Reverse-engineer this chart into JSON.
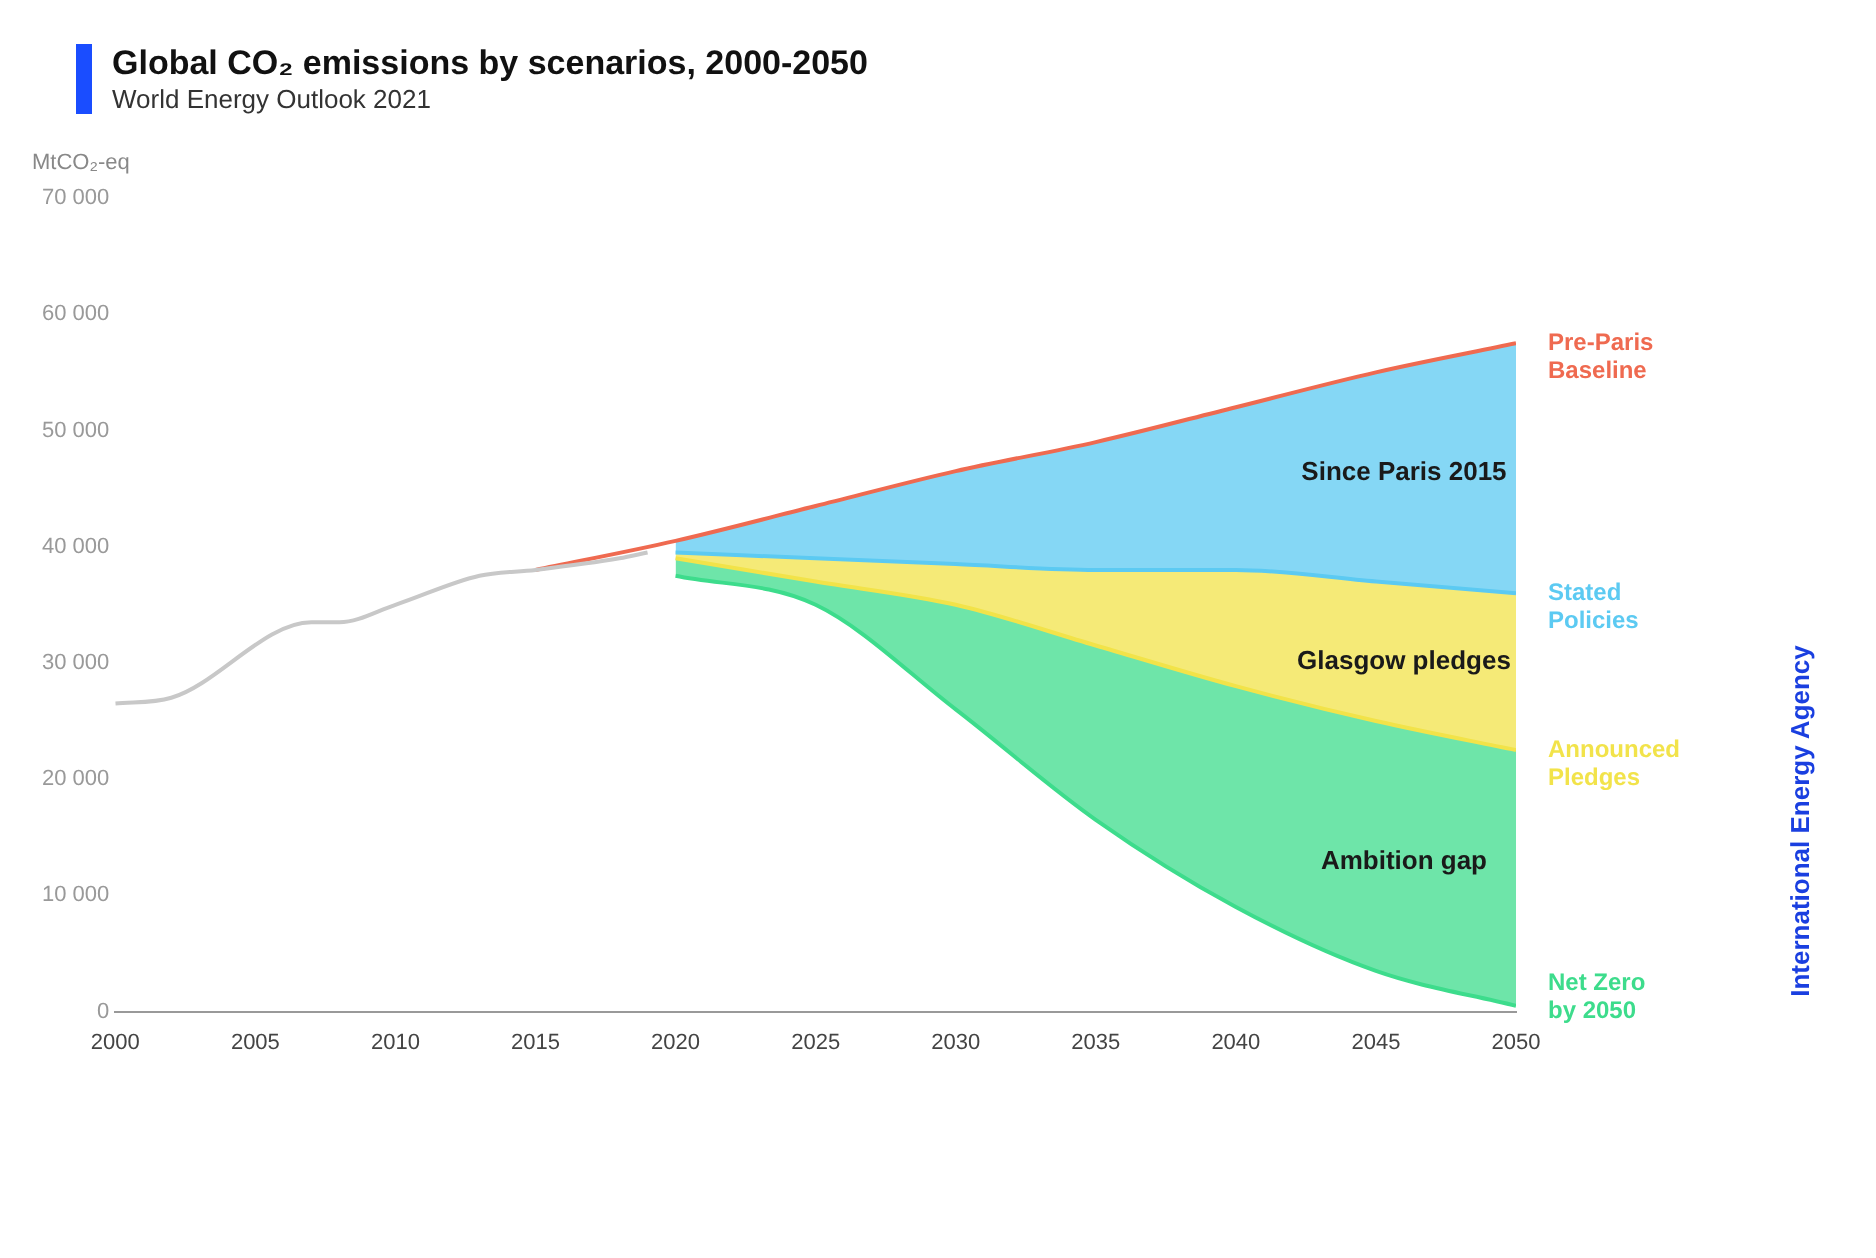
{
  "chart_data": {
    "type": "line",
    "title": "Global CO₂ emissions by scenarios, 2000-2050",
    "subtitle": "World Energy Outlook 2021",
    "ylabel": "MtCO₂-eq",
    "xlim": [
      2000,
      2050
    ],
    "xticks": [
      2000,
      2005,
      2010,
      2015,
      2020,
      2025,
      2030,
      2035,
      2040,
      2045,
      2050
    ],
    "ylim": [
      0,
      70000
    ],
    "yticks": [
      {
        "value": 0,
        "label": "0"
      },
      {
        "value": 10000,
        "label": "10 000"
      },
      {
        "value": 20000,
        "label": "20 000"
      },
      {
        "value": 30000,
        "label": "30 000"
      },
      {
        "value": 40000,
        "label": "40 000"
      },
      {
        "value": 50000,
        "label": "50 000"
      },
      {
        "value": 60000,
        "label": "60 000"
      },
      {
        "value": 70000,
        "label": "70 000"
      }
    ],
    "grid": false,
    "legend": false,
    "series": [
      {
        "color": "#c8c8c8",
        "x": [
          2000,
          2002,
          2007,
          2008,
          2010,
          2013,
          2015,
          2018,
          2019
        ],
        "values": [
          26500,
          27000,
          33500,
          33500,
          35000,
          37500,
          38000,
          39000,
          39500
        ]
      },
      {
        "name": "Pre-Paris Baseline",
        "color": "#ef6a50",
        "x": [
          2015,
          2020,
          2025,
          2030,
          2035,
          2040,
          2045,
          2050
        ],
        "values": [
          38000,
          40500,
          43500,
          46500,
          49000,
          52000,
          55000,
          57500
        ]
      },
      {
        "name": "Stated Policies",
        "color": "#5ccaf2",
        "x": [
          2020,
          2025,
          2030,
          2035,
          2040,
          2045,
          2050
        ],
        "values": [
          39500,
          39000,
          38500,
          38000,
          38000,
          37000,
          36000
        ],
        "lower": [
          39500,
          39000,
          38500,
          38000,
          38000,
          37000,
          36000
        ],
        "upper": [
          40500,
          43500,
          46500,
          49000,
          52000,
          55000,
          57500
        ]
      },
      {
        "name": "Announced Pledges",
        "color": "#f2e34a",
        "x": [
          2020,
          2025,
          2030,
          2035,
          2040,
          2045,
          2050
        ],
        "values": [
          39000,
          37000,
          35000,
          31500,
          28000,
          25000,
          22500
        ],
        "lower": [
          39000,
          37000,
          35000,
          31500,
          28000,
          25000,
          22500
        ],
        "upper": [
          39500,
          39000,
          38500,
          38000,
          38000,
          37000,
          36000
        ]
      },
      {
        "name": "Net Zero by 2050",
        "color": "#3ddc8c",
        "x": [
          2020,
          2025,
          2030,
          2035,
          2040,
          2045,
          2050
        ],
        "values": [
          37500,
          35000,
          26000,
          16500,
          9000,
          3500,
          500
        ],
        "lower": [
          37500,
          35000,
          26000,
          16500,
          9000,
          3500,
          500
        ],
        "upper": [
          39000,
          37000,
          35000,
          31500,
          28000,
          25000,
          22500
        ]
      }
    ],
    "annotations": [
      "Since Paris 2015",
      "Glasgow pledges",
      "Ambition gap",
      "International Energy Agency"
    ]
  }
}
